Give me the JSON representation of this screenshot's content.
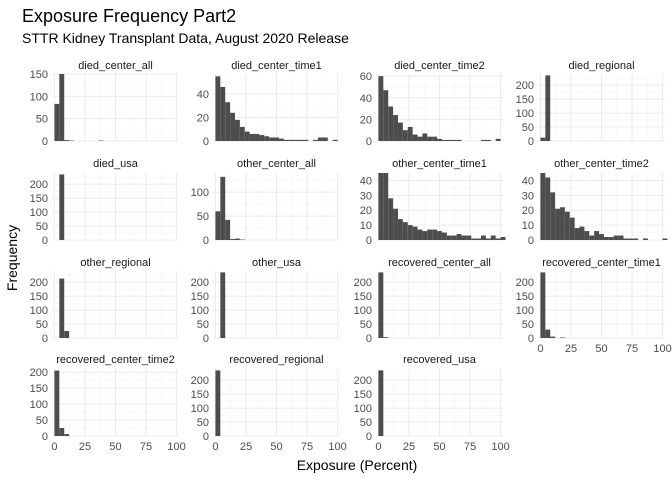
{
  "chart_data": {
    "type": "bar",
    "title": "Exposure Frequency Part2",
    "subtitle": "STTR Kidney Transplant Data, August 2020 Release",
    "xlabel": "Exposure (Percent)",
    "ylabel": "Frequency",
    "grid": true,
    "bin_width": 4,
    "xlim": [
      -2,
      102
    ],
    "x_ticks": [
      0,
      25,
      50,
      75,
      100
    ],
    "facet_columns": 4,
    "panels": [
      {
        "name": "died_center_all",
        "ylim": [
          0,
          150
        ],
        "y_ticks": [
          0,
          50,
          100,
          150
        ],
        "bins": [
          0,
          4,
          8,
          12,
          36
        ],
        "counts": [
          83,
          152,
          2,
          1,
          1
        ]
      },
      {
        "name": "died_center_time1",
        "ylim": [
          0,
          57
        ],
        "y_ticks": [
          0,
          20,
          40
        ],
        "bins": [
          0,
          4,
          8,
          12,
          16,
          20,
          24,
          28,
          32,
          36,
          40,
          44,
          48,
          52,
          56,
          60,
          64,
          68,
          72,
          76,
          80,
          84,
          88,
          92,
          96
        ],
        "counts": [
          55,
          46,
          33,
          24,
          18,
          12,
          8,
          6,
          6,
          5,
          4,
          3,
          3,
          2,
          1,
          1,
          1,
          1,
          1,
          0,
          1,
          3,
          3,
          0,
          1
        ]
      },
      {
        "name": "died_center_time2",
        "ylim": [
          0,
          62
        ],
        "y_ticks": [
          0,
          20,
          40,
          60
        ],
        "bins": [
          0,
          4,
          8,
          12,
          16,
          20,
          24,
          28,
          32,
          36,
          40,
          44,
          48,
          52,
          56,
          60,
          64,
          68,
          72,
          76,
          80,
          84,
          88,
          92,
          96
        ],
        "counts": [
          60,
          47,
          32,
          24,
          17,
          10,
          13,
          6,
          4,
          7,
          4,
          4,
          2,
          1,
          1,
          1,
          1,
          0,
          0,
          0,
          0,
          1,
          1,
          0,
          2
        ]
      },
      {
        "name": "died_regional",
        "ylim": [
          0,
          240
        ],
        "y_ticks": [
          0,
          50,
          100,
          150,
          200
        ],
        "bins": [
          0,
          4
        ],
        "counts": [
          12,
          235
        ]
      },
      {
        "name": "died_usa",
        "ylim": [
          0,
          240
        ],
        "y_ticks": [
          0,
          50,
          100,
          150,
          200
        ],
        "bins": [
          4
        ],
        "counts": [
          235
        ]
      },
      {
        "name": "other_center_all",
        "ylim": [
          0,
          140
        ],
        "y_ticks": [
          0,
          50,
          100
        ],
        "bins": [
          0,
          4,
          8,
          12,
          16,
          20
        ],
        "counts": [
          60,
          132,
          42,
          2,
          3,
          1
        ]
      },
      {
        "name": "other_center_time1",
        "ylim": [
          0,
          45
        ],
        "y_ticks": [
          0,
          10,
          20,
          30,
          40
        ],
        "bins": [
          0,
          4,
          8,
          12,
          16,
          20,
          24,
          28,
          32,
          36,
          40,
          44,
          48,
          52,
          56,
          60,
          64,
          68,
          72,
          76,
          80,
          84,
          88,
          92,
          96,
          100
        ],
        "counts": [
          45,
          45,
          28,
          21,
          14,
          12,
          10,
          9,
          7,
          6,
          7,
          7,
          6,
          5,
          3,
          3,
          4,
          3,
          3,
          1,
          1,
          3,
          1,
          3,
          1,
          2
        ]
      },
      {
        "name": "other_center_time2",
        "ylim": [
          0,
          45
        ],
        "y_ticks": [
          0,
          10,
          20,
          30,
          40
        ],
        "bins": [
          0,
          4,
          8,
          12,
          16,
          20,
          24,
          28,
          32,
          36,
          40,
          44,
          48,
          52,
          56,
          60,
          64,
          68,
          72,
          76,
          80,
          84,
          88,
          92,
          96,
          100
        ],
        "counts": [
          45,
          42,
          32,
          21,
          22,
          19,
          15,
          8,
          9,
          6,
          3,
          6,
          4,
          2,
          2,
          3,
          3,
          1,
          1,
          1,
          0,
          1,
          0,
          0,
          0,
          1
        ]
      },
      {
        "name": "other_regional",
        "ylim": [
          0,
          240
        ],
        "y_ticks": [
          0,
          50,
          100,
          150,
          200
        ],
        "bins": [
          4,
          8
        ],
        "counts": [
          213,
          25
        ]
      },
      {
        "name": "other_usa",
        "ylim": [
          0,
          240
        ],
        "y_ticks": [
          0,
          50,
          100,
          150,
          200
        ],
        "bins": [
          4
        ],
        "counts": [
          235
        ]
      },
      {
        "name": "recovered_center_all",
        "ylim": [
          0,
          240
        ],
        "y_ticks": [
          0,
          50,
          100,
          150,
          200
        ],
        "bins": [
          0,
          4
        ],
        "counts": [
          235,
          3
        ]
      },
      {
        "name": "recovered_center_time1",
        "ylim": [
          0,
          240
        ],
        "y_ticks": [
          0,
          50,
          100,
          150,
          200
        ],
        "bins": [
          0,
          4,
          8,
          16
        ],
        "counts": [
          235,
          30,
          5,
          2
        ]
      },
      {
        "name": "recovered_center_time2",
        "ylim": [
          0,
          210
        ],
        "y_ticks": [
          0,
          50,
          100,
          150,
          200
        ],
        "bins": [
          0,
          4,
          8
        ],
        "counts": [
          205,
          25,
          6
        ]
      },
      {
        "name": "recovered_regional",
        "ylim": [
          0,
          240
        ],
        "y_ticks": [
          0,
          50,
          100,
          150,
          200
        ],
        "bins": [
          0
        ],
        "counts": [
          235
        ]
      },
      {
        "name": "recovered_usa",
        "ylim": [
          0,
          240
        ],
        "y_ticks": [
          0,
          50,
          100,
          150,
          200
        ],
        "bins": [
          0
        ],
        "counts": [
          235
        ]
      }
    ]
  }
}
